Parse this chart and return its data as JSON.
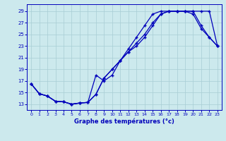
{
  "xlabel": "Graphe des températures (°c)",
  "x_ticks": [
    0,
    1,
    2,
    3,
    4,
    5,
    6,
    7,
    8,
    9,
    10,
    11,
    12,
    13,
    14,
    15,
    16,
    17,
    18,
    19,
    20,
    21,
    22,
    23
  ],
  "y_ticks": [
    13,
    15,
    17,
    19,
    21,
    23,
    25,
    27,
    29
  ],
  "ylim": [
    12.0,
    30.2
  ],
  "xlim": [
    -0.5,
    23.5
  ],
  "bg_color": "#cce9ed",
  "line_color": "#0000bb",
  "grid_color": "#a8cdd4",
  "line1_y": [
    16.5,
    14.8,
    14.4,
    13.5,
    13.4,
    13.0,
    13.2,
    13.3,
    14.7,
    17.5,
    19.0,
    20.5,
    22.0,
    23.0,
    24.5,
    26.5,
    28.5,
    29.0,
    29.0,
    29.0,
    29.0,
    29.0,
    29.0,
    23.0
  ],
  "line2_y": [
    16.5,
    14.8,
    14.4,
    13.5,
    13.4,
    13.0,
    13.2,
    13.3,
    14.7,
    17.5,
    19.0,
    20.5,
    22.0,
    23.5,
    25.0,
    27.0,
    28.5,
    29.0,
    29.0,
    29.0,
    29.0,
    26.5,
    24.5,
    23.0
  ],
  "line3_y": [
    16.5,
    14.8,
    14.4,
    13.5,
    13.4,
    13.0,
    13.2,
    13.3,
    18.0,
    17.0,
    18.0,
    20.5,
    22.5,
    24.5,
    26.5,
    28.5,
    29.0,
    29.0,
    29.0,
    29.0,
    28.5,
    26.0,
    24.5,
    23.0
  ]
}
